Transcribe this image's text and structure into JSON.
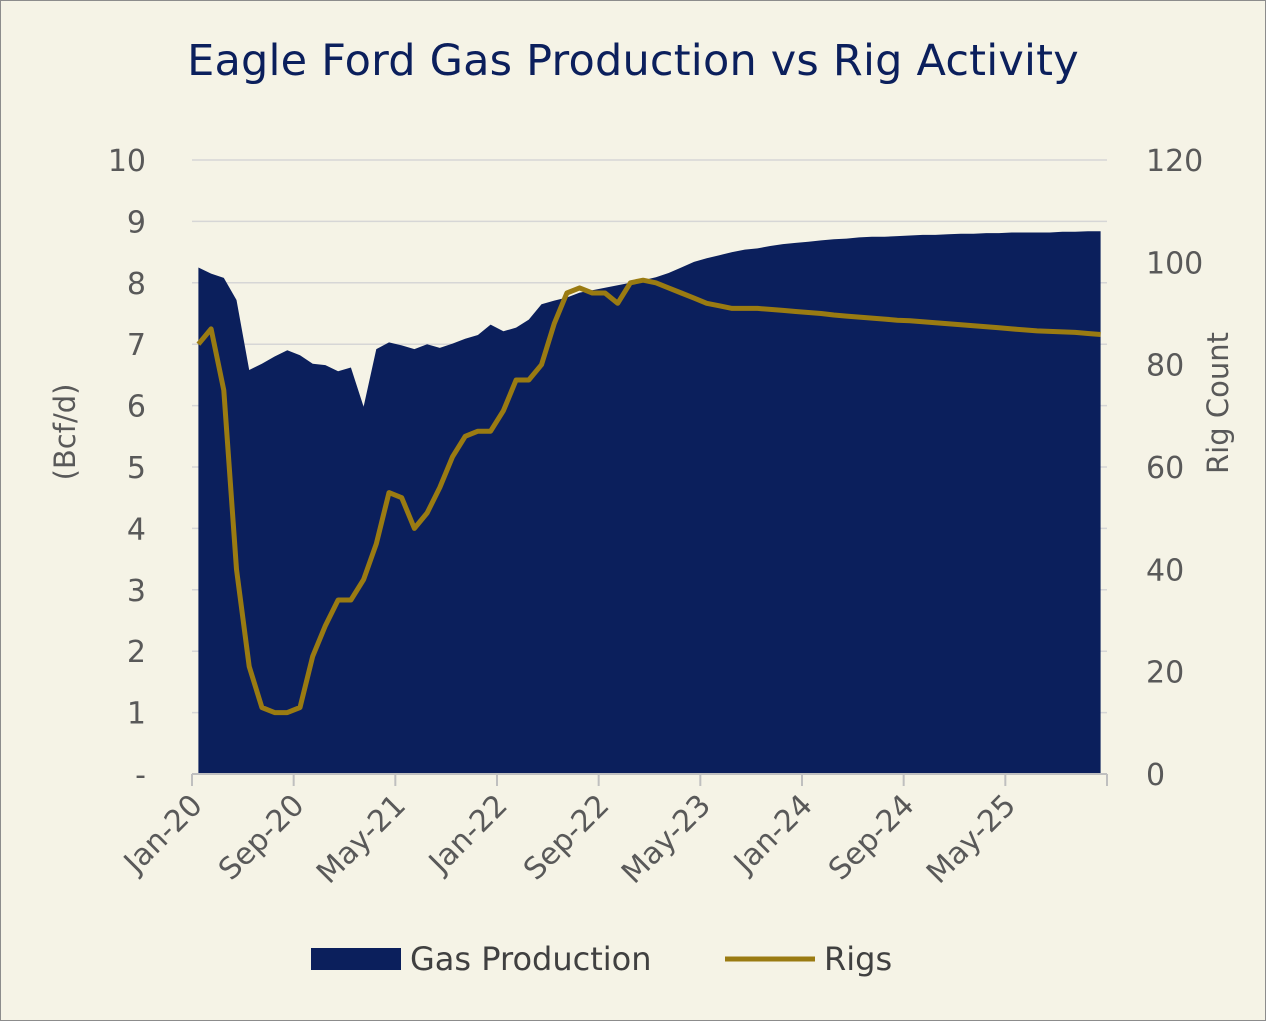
{
  "chart_data": {
    "type": "area+line",
    "title": "Eagle Ford Gas Production vs Rig Activity",
    "x_tick_labels": [
      "Jan-20",
      "Sep-20",
      "May-21",
      "Jan-22",
      "Sep-22",
      "May-23",
      "Jan-24",
      "Sep-24",
      "May-25"
    ],
    "x_start": "2020-01",
    "x_end": "2025-12",
    "y_left": {
      "label": "(Bcf/d)",
      "ylim": [
        0,
        10
      ],
      "ticks": [
        "-",
        "1",
        "2",
        "3",
        "4",
        "5",
        "6",
        "7",
        "8",
        "9",
        "10"
      ]
    },
    "y_right": {
      "label": "Rig Count",
      "ylim": [
        0,
        120
      ],
      "ticks": [
        "0",
        "20",
        "40",
        "60",
        "80",
        "100",
        "120"
      ]
    },
    "grid": true,
    "legend_position": "bottom",
    "series": [
      {
        "name": "Gas Production",
        "type": "area",
        "axis": "left",
        "color": "#0b1f5c",
        "months": [
          "2020-01",
          "2020-02",
          "2020-03",
          "2020-04",
          "2020-05",
          "2020-06",
          "2020-07",
          "2020-08",
          "2020-09",
          "2020-10",
          "2020-11",
          "2020-12",
          "2021-01",
          "2021-02",
          "2021-03",
          "2021-04",
          "2021-05",
          "2021-06",
          "2021-07",
          "2021-08",
          "2021-09",
          "2021-10",
          "2021-11",
          "2021-12",
          "2022-01",
          "2022-02",
          "2022-03",
          "2022-04",
          "2022-05",
          "2022-06",
          "2022-07",
          "2022-08",
          "2022-09",
          "2022-10",
          "2022-11",
          "2022-12",
          "2023-01",
          "2023-02",
          "2023-03",
          "2023-04",
          "2023-05",
          "2023-06",
          "2023-07",
          "2023-08",
          "2023-09",
          "2023-10",
          "2023-11",
          "2023-12",
          "2024-01",
          "2024-02",
          "2024-03",
          "2024-04",
          "2024-05",
          "2024-06",
          "2024-07",
          "2024-08",
          "2024-09",
          "2024-10",
          "2024-11",
          "2024-12",
          "2025-01",
          "2025-02",
          "2025-03",
          "2025-04",
          "2025-05",
          "2025-06",
          "2025-07",
          "2025-08",
          "2025-09",
          "2025-10",
          "2025-11",
          "2025-12"
        ],
        "values": [
          8.25,
          8.15,
          8.08,
          7.72,
          6.58,
          6.68,
          6.8,
          6.9,
          6.82,
          6.68,
          6.66,
          6.56,
          6.62,
          5.98,
          6.92,
          7.03,
          6.98,
          6.92,
          7.0,
          6.94,
          7.01,
          7.09,
          7.15,
          7.32,
          7.21,
          7.27,
          7.4,
          7.65,
          7.71,
          7.76,
          7.84,
          7.88,
          7.92,
          7.96,
          8.0,
          8.04,
          8.09,
          8.16,
          8.25,
          8.34,
          8.4,
          8.45,
          8.5,
          8.54,
          8.56,
          8.6,
          8.63,
          8.65,
          8.67,
          8.69,
          8.71,
          8.72,
          8.74,
          8.75,
          8.75,
          8.76,
          8.77,
          8.78,
          8.78,
          8.79,
          8.8,
          8.8,
          8.81,
          8.81,
          8.82,
          8.82,
          8.82,
          8.82,
          8.83,
          8.83,
          8.84,
          8.84
        ]
      },
      {
        "name": "Rigs",
        "type": "line",
        "axis": "right",
        "color": "#9a7b12",
        "months": [
          "2020-01",
          "2020-02",
          "2020-03",
          "2020-04",
          "2020-05",
          "2020-06",
          "2020-07",
          "2020-08",
          "2020-09",
          "2020-10",
          "2020-11",
          "2020-12",
          "2021-01",
          "2021-02",
          "2021-03",
          "2021-04",
          "2021-05",
          "2021-06",
          "2021-07",
          "2021-08",
          "2021-09",
          "2021-10",
          "2021-11",
          "2021-12",
          "2022-01",
          "2022-02",
          "2022-03",
          "2022-04",
          "2022-05",
          "2022-06",
          "2022-07",
          "2022-08",
          "2022-09",
          "2022-10",
          "2022-11",
          "2022-12",
          "2023-01",
          "2023-02",
          "2023-03",
          "2023-04",
          "2023-05",
          "2023-06",
          "2023-07",
          "2023-08",
          "2023-09",
          "2023-10",
          "2023-11",
          "2023-12",
          "2024-01",
          "2024-02",
          "2024-03",
          "2024-04",
          "2024-05",
          "2024-06",
          "2024-07",
          "2024-08",
          "2024-09",
          "2024-10",
          "2024-11",
          "2024-12",
          "2025-01",
          "2025-02",
          "2025-03",
          "2025-04",
          "2025-05",
          "2025-06",
          "2025-07",
          "2025-08",
          "2025-09",
          "2025-10",
          "2025-11",
          "2025-12"
        ],
        "values": [
          84,
          87,
          75,
          40,
          21,
          13,
          12,
          12,
          13,
          23,
          29,
          34,
          34,
          38,
          45,
          55,
          54,
          48,
          51,
          56,
          62,
          66,
          67,
          67,
          71,
          77,
          77,
          80,
          88,
          94,
          95,
          94,
          94,
          92,
          96,
          96.5,
          96,
          95,
          94,
          93,
          92,
          91.5,
          91,
          91,
          91,
          90.8,
          90.6,
          90.4,
          90.2,
          90.0,
          89.7,
          89.5,
          89.3,
          89.1,
          88.9,
          88.7,
          88.6,
          88.4,
          88.2,
          88.0,
          87.8,
          87.6,
          87.4,
          87.2,
          87.0,
          86.8,
          86.6,
          86.5,
          86.4,
          86.3,
          86.1,
          85.9
        ]
      }
    ]
  }
}
